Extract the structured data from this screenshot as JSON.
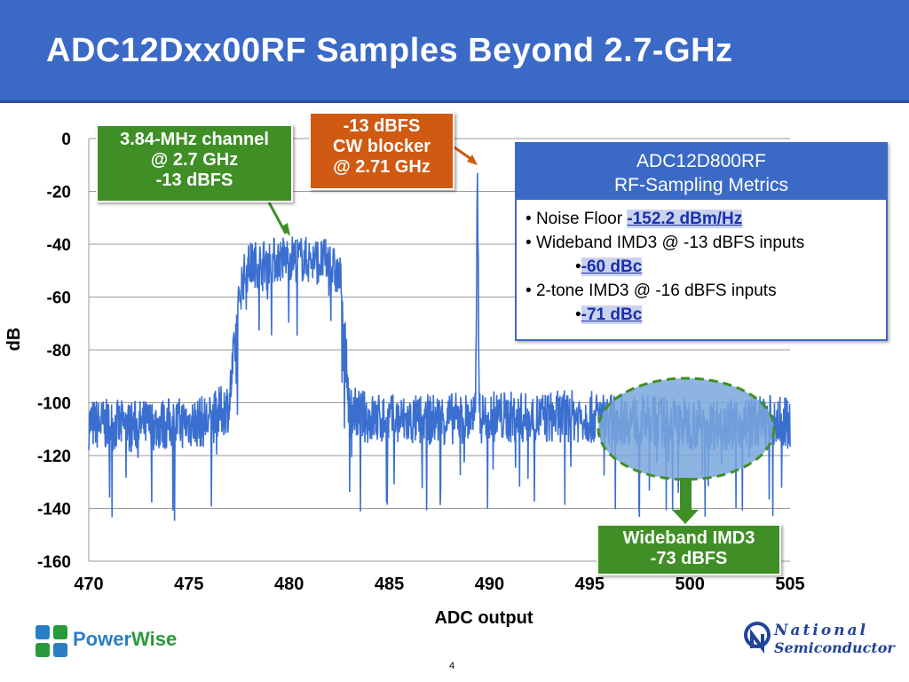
{
  "slide": {
    "title": "ADC12Dxx00RF Samples Beyond 2.7-GHz",
    "page_number": "4"
  },
  "chart_data": {
    "type": "line",
    "title": "",
    "xlabel": "ADC output",
    "ylabel": "dB",
    "xlim": [
      470,
      505
    ],
    "ylim": [
      -160,
      0
    ],
    "x_ticks": [
      "470",
      "475",
      "480",
      "485",
      "490",
      "495",
      "500",
      "505"
    ],
    "y_ticks": [
      "0",
      "-20",
      "-40",
      "-60",
      "-80",
      "-100",
      "-120",
      "-140",
      "-160"
    ],
    "grid": "horizontal",
    "series_color": "#3a6fd0",
    "series": [
      {
        "x": [
          470,
          472,
          474,
          476,
          477,
          477.6,
          478,
          480,
          482,
          482.6,
          483,
          484,
          486,
          488,
          489.3,
          489.4,
          489.5,
          490,
          492,
          494,
          496,
          498,
          500,
          502,
          504,
          505
        ],
        "y": [
          -108,
          -109,
          -108,
          -107,
          -101,
          -55,
          -48,
          -45,
          -47,
          -54,
          -103,
          -106,
          -107,
          -106,
          -106,
          -13,
          -106,
          -105,
          -106,
          -105,
          -106,
          -107,
          -108,
          -108,
          -107,
          -108
        ]
      }
    ]
  },
  "callouts": {
    "channel": {
      "line1": "3.84-MHz channel",
      "line2": "@ 2.7 GHz",
      "line3": "-13 dBFS"
    },
    "blocker": {
      "line1": "-13 dBFS",
      "line2": "CW blocker",
      "line3": "@ 2.71 GHz"
    },
    "imd": {
      "line1": "Wideband IMD3",
      "line2": "-73 dBFS"
    }
  },
  "metrics": {
    "heading1": "ADC12D800RF",
    "heading2": "RF-Sampling Metrics",
    "noise_label": "Noise Floor ",
    "noise_value": "-152.2 dBm/Hz",
    "wb_label": "Wideband IMD3 @ -13 dBFS inputs",
    "wb_value": "-60 dBc",
    "tt_label": "2-tone  IMD3 @ -16 dBFS inputs",
    "tt_value": "-71 dBc"
  },
  "logos": {
    "left_power": "Power",
    "left_wise": "Wise",
    "right_line1": "National",
    "right_line2": "Semiconductor"
  },
  "colors": {
    "title_bar": "#3a69c6",
    "callout_green": "#3f8f26",
    "callout_orange": "#d05a12",
    "highlight_text": "#1a2fae"
  }
}
